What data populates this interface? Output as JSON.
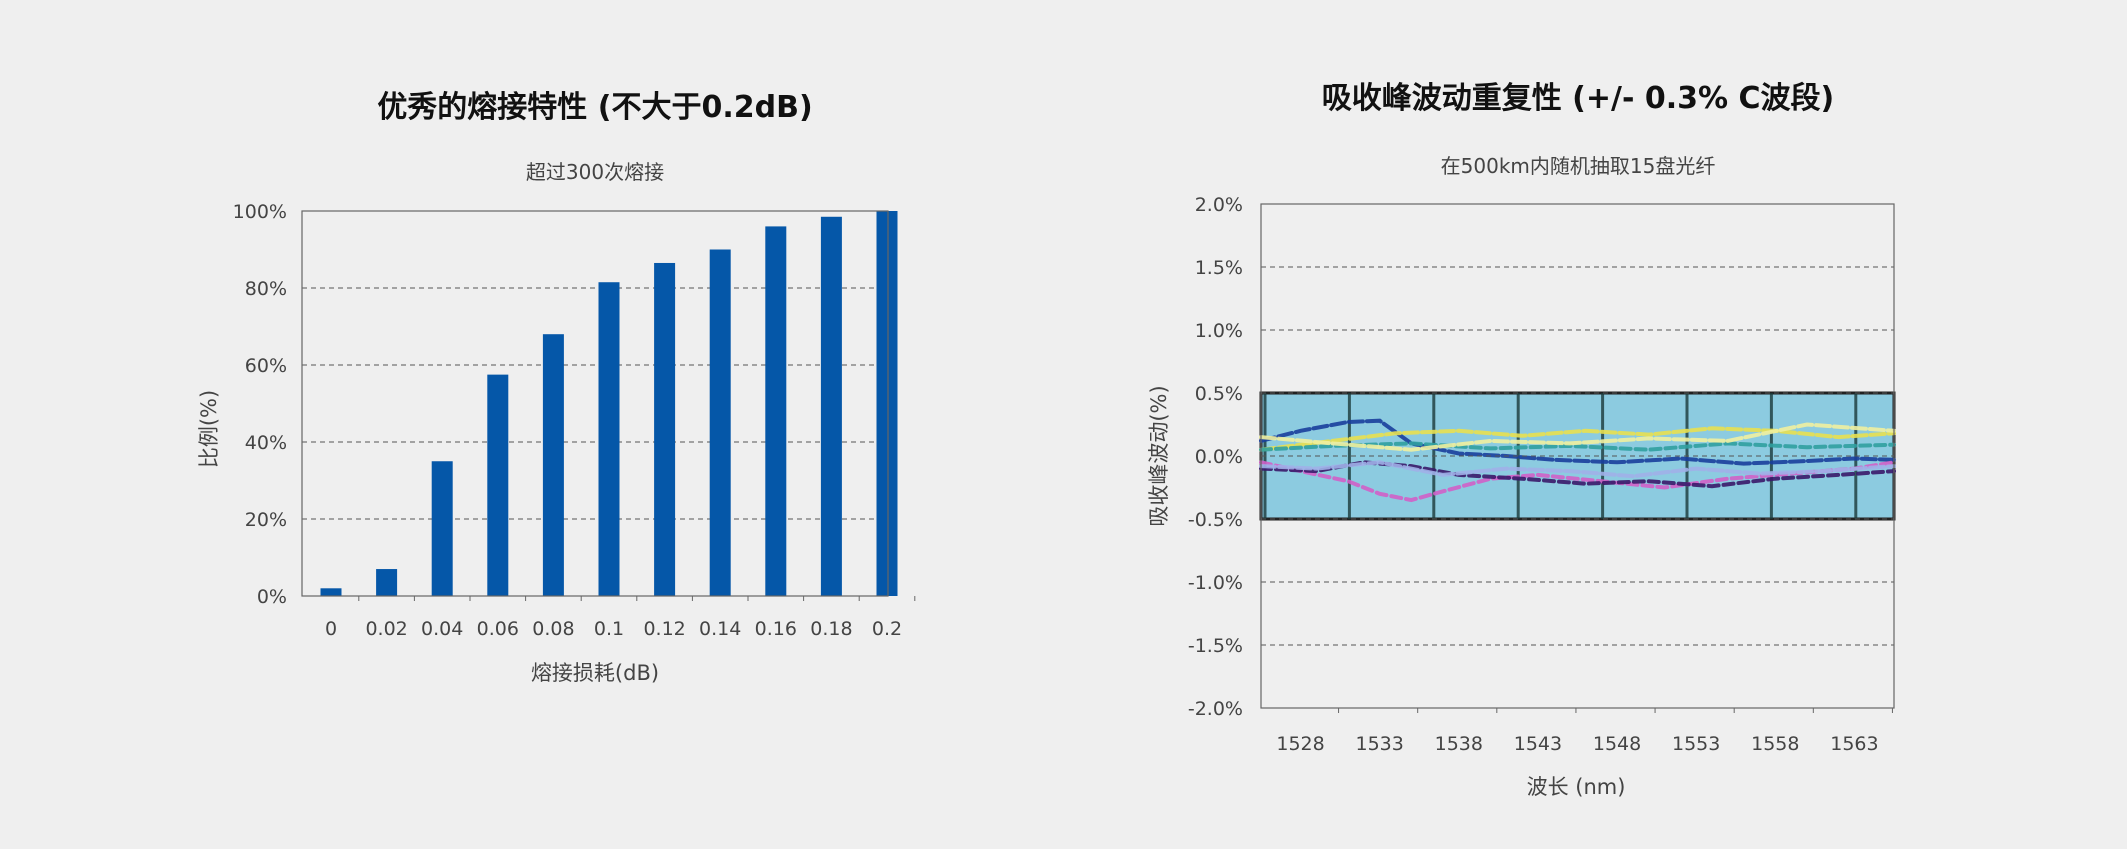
{
  "chart_data": [
    {
      "type": "bar",
      "title": "优秀的熔接特性 (不大于0.2dB)",
      "subtitle": "超过300次熔接",
      "xlabel": "熔接损耗(dB)",
      "ylabel": "比例(%)",
      "categories": [
        "0",
        "0.02",
        "0.04",
        "0.06",
        "0.08",
        "0.1",
        "0.12",
        "0.14",
        "0.16",
        "0.18",
        "0.2"
      ],
      "values": [
        2,
        7,
        35,
        57.5,
        68,
        81.5,
        86.5,
        90,
        96,
        98.5,
        100
      ],
      "ylim": [
        0,
        100
      ],
      "yticks": [
        "0%",
        "20%",
        "40%",
        "60%",
        "80%",
        "100%"
      ],
      "grid": "horizontal dashed",
      "bar_color": "#0557a8"
    },
    {
      "type": "line",
      "title": "吸收峰波动重复性 (+/- 0.3% C波段)",
      "subtitle": "在500km内随机抽取15盘光纤",
      "xlabel": "波长 (nm)",
      "ylabel": "吸收峰波动(%)",
      "xticks": [
        "1528",
        "1533",
        "1538",
        "1543",
        "1548",
        "1553",
        "1558",
        "1563"
      ],
      "yticks": [
        "2.0%",
        "1.5%",
        "1.0%",
        "0.5%",
        "0.0%",
        "-0.5%",
        "-1.0%",
        "-1.5%",
        "-2.0%"
      ],
      "xlim": [
        1525.5,
        1565.5
      ],
      "ylim": [
        -2.0,
        2.0
      ],
      "band": [
        -0.5,
        0.5
      ],
      "band_color": "#8ccbe0",
      "grid": "horizontal dashed",
      "series": [
        {
          "color": "#1a3f9c",
          "x": [
            1525.5,
            1528,
            1531,
            1533,
            1535,
            1538,
            1541,
            1544,
            1548,
            1552,
            1556,
            1560,
            1563,
            1565.5
          ],
          "values": [
            0.12,
            0.2,
            0.27,
            0.28,
            0.1,
            0.02,
            0.0,
            -0.03,
            -0.05,
            -0.02,
            -0.06,
            -0.04,
            -0.02,
            -0.03
          ]
        },
        {
          "color": "#d060c8",
          "x": [
            1525.5,
            1528,
            1531,
            1533,
            1535,
            1537,
            1540,
            1543,
            1547,
            1551,
            1555,
            1559,
            1563,
            1565.5
          ],
          "values": [
            -0.05,
            -0.12,
            -0.2,
            -0.3,
            -0.35,
            -0.28,
            -0.18,
            -0.15,
            -0.2,
            -0.25,
            -0.18,
            -0.14,
            -0.1,
            -0.05
          ]
        },
        {
          "color": "#e8e050",
          "x": [
            1525.5,
            1530,
            1534,
            1538,
            1542,
            1546,
            1550,
            1554,
            1558,
            1562,
            1565.5
          ],
          "values": [
            0.05,
            0.12,
            0.18,
            0.2,
            0.16,
            0.2,
            0.17,
            0.22,
            0.2,
            0.15,
            0.18
          ]
        },
        {
          "color": "#3a1a6a",
          "x": [
            1525.5,
            1529,
            1532,
            1535,
            1538,
            1542,
            1546,
            1550,
            1554,
            1558,
            1562,
            1565.5
          ],
          "values": [
            -0.1,
            -0.12,
            -0.05,
            -0.08,
            -0.15,
            -0.18,
            -0.22,
            -0.2,
            -0.24,
            -0.18,
            -0.15,
            -0.12
          ]
        },
        {
          "color": "#a0b0e8",
          "x": [
            1525.5,
            1529,
            1533,
            1537,
            1541,
            1545,
            1549,
            1553,
            1557,
            1561,
            1565.5
          ],
          "values": [
            -0.08,
            -0.1,
            -0.05,
            -0.15,
            -0.1,
            -0.12,
            -0.16,
            -0.1,
            -0.14,
            -0.12,
            -0.08
          ]
        },
        {
          "color": "#30a0a0",
          "x": [
            1525.5,
            1530,
            1535,
            1540,
            1545,
            1550,
            1555,
            1560,
            1565.5
          ],
          "values": [
            0.05,
            0.08,
            0.1,
            0.06,
            0.08,
            0.05,
            0.1,
            0.07,
            0.09
          ]
        },
        {
          "color": "#f0f0a0",
          "x": [
            1525.5,
            1530,
            1535,
            1540,
            1545,
            1550,
            1555,
            1560,
            1565.5
          ],
          "values": [
            0.15,
            0.1,
            0.05,
            0.12,
            0.1,
            0.14,
            0.12,
            0.25,
            0.2
          ]
        }
      ]
    }
  ]
}
